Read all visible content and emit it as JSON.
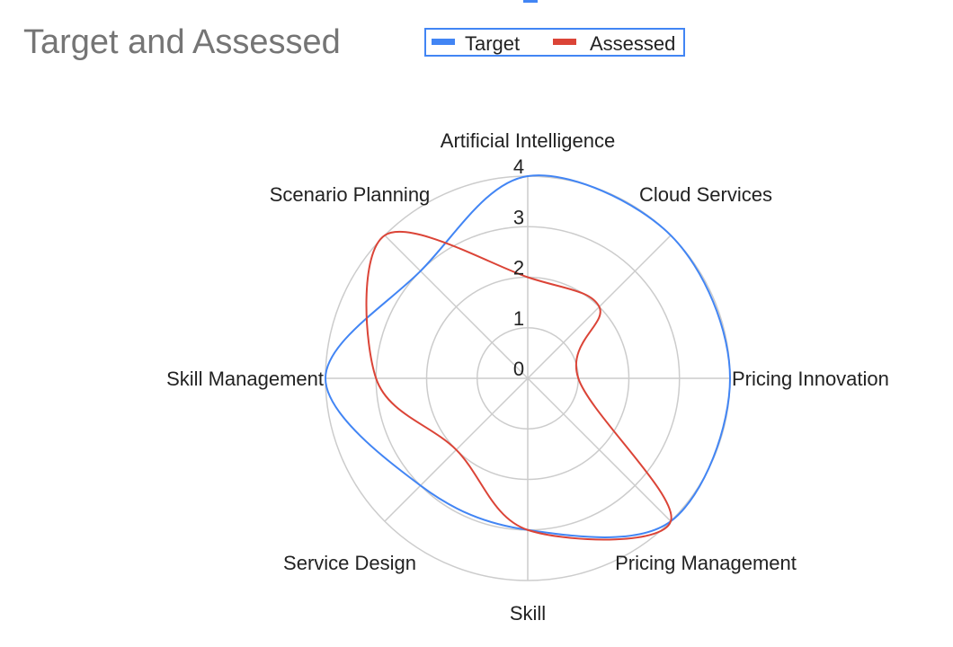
{
  "chart_data": {
    "type": "radar",
    "title": "Target and Assessed",
    "categories": [
      "Artificial Intelligence",
      "Cloud Services",
      "Pricing Innovation",
      "Pricing Management",
      "Skill",
      "Service Design",
      "Skill Management",
      "Scenario Planning"
    ],
    "series": [
      {
        "name": "Target",
        "color": "#4285f4",
        "values": [
          4,
          4,
          4,
          4,
          3,
          3,
          4,
          3
        ]
      },
      {
        "name": "Assessed",
        "color": "#db4437",
        "values": [
          2,
          2,
          1,
          4,
          3,
          2,
          3,
          4
        ]
      }
    ],
    "ticks": [
      "0",
      "1",
      "2",
      "3",
      "4"
    ],
    "rlim": [
      0,
      4
    ],
    "grid": true,
    "legend_position": "top"
  }
}
